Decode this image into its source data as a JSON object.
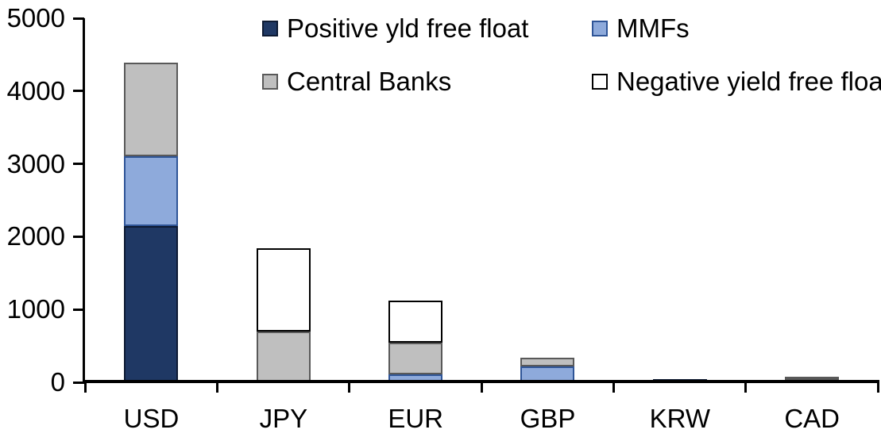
{
  "chart_data": {
    "type": "bar",
    "stacked": true,
    "title": "",
    "xlabel": "",
    "ylabel": "",
    "categories": [
      "USD",
      "JPY",
      "EUR",
      "GBP",
      "KRW",
      "CAD"
    ],
    "series": [
      {
        "name": "Positive yld free float",
        "color": "#1F3864",
        "border_color": "#0D1A33",
        "values": [
          2150,
          0,
          0,
          0,
          45,
          35
        ]
      },
      {
        "name": "MMFs",
        "color": "#8EAADB",
        "border_color": "#2F5597",
        "values": [
          950,
          0,
          110,
          220,
          0,
          0
        ]
      },
      {
        "name": "Central Banks",
        "color": "#BFBFBF",
        "border_color": "#595959",
        "values": [
          1290,
          700,
          435,
          120,
          0,
          40
        ]
      },
      {
        "name": "Negative yield free float",
        "color": "#FFFFFF",
        "border_color": "#000000",
        "values": [
          0,
          1140,
          575,
          0,
          0,
          0
        ]
      }
    ],
    "totals": [
      4390,
      1840,
      1120,
      340,
      45,
      75
    ],
    "ylim": [
      0,
      5000
    ],
    "yticks": [
      0,
      1000,
      2000,
      3000,
      4000,
      5000
    ],
    "grid": false,
    "legend_position": "top",
    "axis_color": "#000000",
    "background_color": "#FFFFFF"
  }
}
